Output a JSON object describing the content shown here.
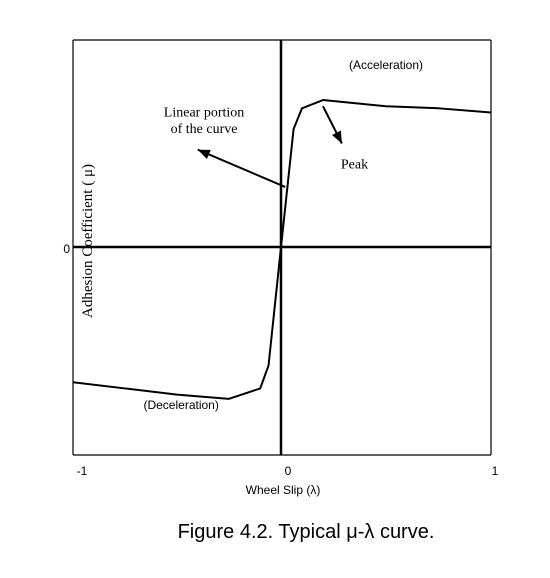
{
  "chart_data": {
    "type": "line",
    "caption": "Figure 4.2. Typical μ-λ curve.",
    "xlabel": "Wheel Slip  (λ)",
    "ylabel": "Adhesion Coefficient (   μ)",
    "xlim": [
      -1,
      1
    ],
    "ylim": [
      -1,
      1
    ],
    "x_ticks": [
      "-1",
      "0",
      "1"
    ],
    "y_ticks": [
      "0"
    ],
    "grid": false,
    "series": [
      {
        "x": [
          -1.0,
          -0.75,
          -0.5,
          -0.25,
          -0.1,
          -0.06,
          0.0,
          0.06,
          0.1,
          0.2,
          0.5,
          0.75,
          1.0
        ],
        "y": [
          -0.65,
          -0.68,
          -0.71,
          -0.73,
          -0.68,
          -0.57,
          0.0,
          0.57,
          0.67,
          0.71,
          0.68,
          0.67,
          0.65
        ]
      }
    ],
    "annotations": [
      {
        "text": "(Acceleration)",
        "x": 0.5,
        "y": 0.86
      },
      {
        "text": "(Deceleration)",
        "x": -0.48,
        "y": -0.78
      },
      {
        "text": "Linear portion",
        "x": -0.37,
        "y": 0.63
      },
      {
        "text": "of the curve",
        "x": -0.37,
        "y": 0.55
      },
      {
        "text": "Peak",
        "x": 0.35,
        "y": 0.38
      }
    ],
    "arrows": [
      {
        "from": [
          0.02,
          0.29
        ],
        "to": [
          -0.4,
          0.47
        ]
      },
      {
        "from": [
          0.2,
          0.68
        ],
        "to": [
          0.29,
          0.5
        ]
      }
    ]
  }
}
